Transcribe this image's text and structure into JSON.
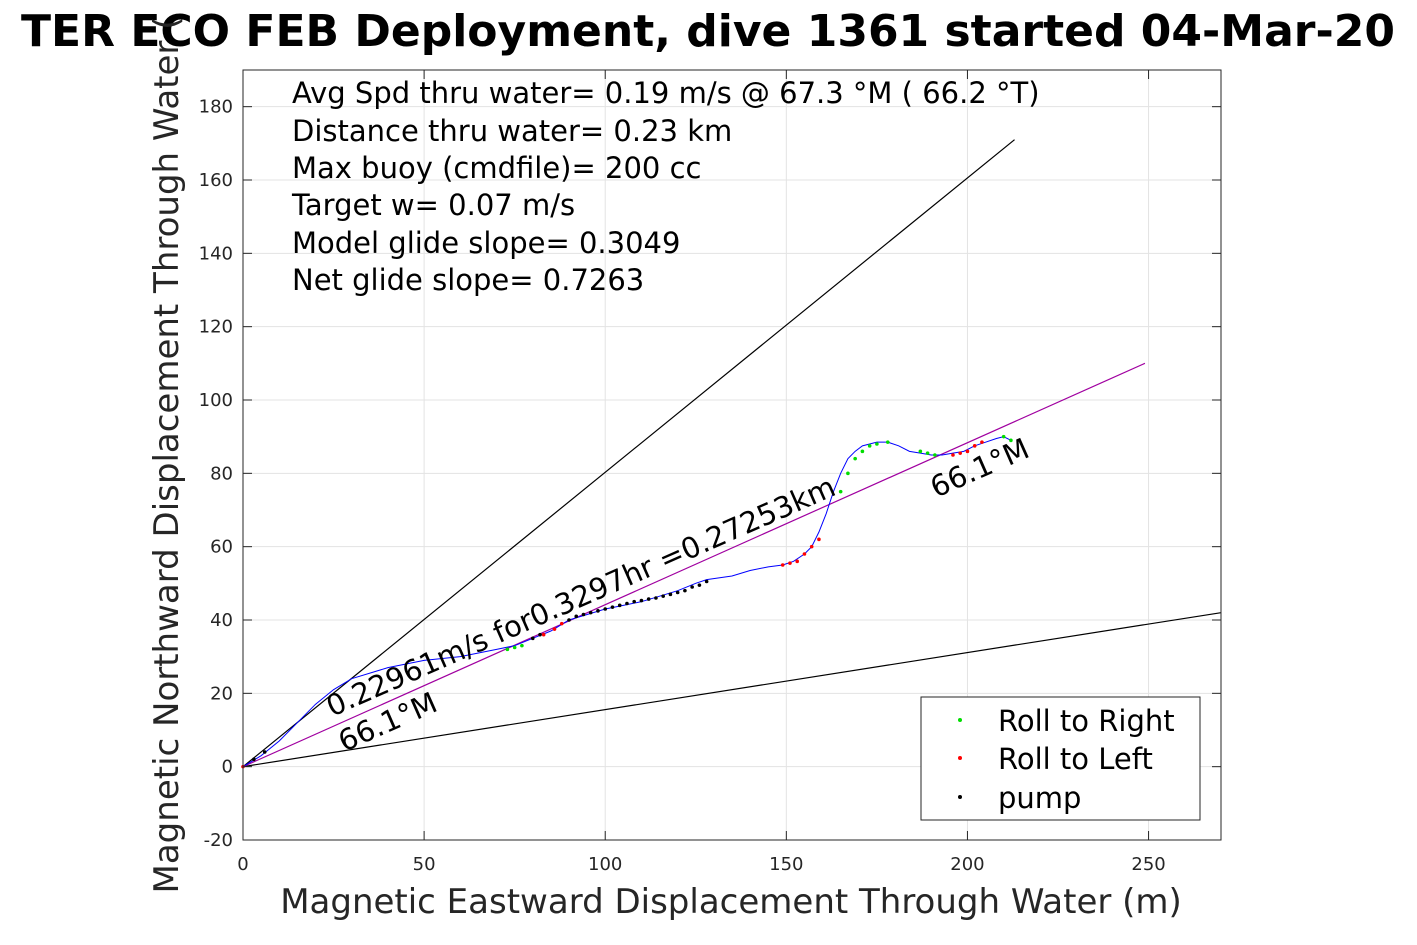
{
  "chart_data": {
    "type": "line",
    "title": "TER ECO FEB Deployment, dive 1361 started 04-Mar-20",
    "xlabel": "Magnetic Eastward Displacement Through Water (m)",
    "ylabel": "Magnetic Northward Displacement Through Water (",
    "xlim": [
      0,
      270
    ],
    "ylim": [
      -20,
      190
    ],
    "xticks": [
      0,
      50,
      100,
      150,
      200,
      250
    ],
    "yticks": [
      -20,
      0,
      20,
      40,
      60,
      80,
      100,
      120,
      140,
      160,
      180
    ],
    "grid": true,
    "info_lines": [
      "Avg Spd thru water=  0.19 m/s @  67.3 °M ( 66.2 °T)",
      "Distance thru water=  0.23 km",
      "Max buoy (cmdfile)= 200 cc",
      "Target w= 0.07 m/s",
      "Model glide slope= 0.3049",
      "Net glide slope= 0.7263"
    ],
    "annotations": {
      "speed_label": "0.22961m/s for0.3297hr =0.27253km",
      "heading_start": "66.1°M",
      "heading_end": "66.1°M"
    },
    "reference_lines": [
      {
        "name": "upper-bound",
        "color": "#000000",
        "x": [
          0,
          213
        ],
        "y": [
          0,
          171
        ]
      },
      {
        "name": "lower-bound",
        "color": "#000000",
        "x": [
          0,
          270
        ],
        "y": [
          0,
          42
        ]
      },
      {
        "name": "mean-heading",
        "color": "#a000a0",
        "x": [
          0,
          249
        ],
        "y": [
          0,
          110
        ]
      }
    ],
    "track": {
      "color": "#0000ff",
      "x": [
        0,
        5,
        10,
        15,
        20,
        25,
        30,
        40,
        50,
        55,
        60,
        65,
        70,
        75,
        80,
        85,
        90,
        95,
        100,
        105,
        110,
        115,
        120,
        125,
        128,
        135,
        140,
        145,
        149,
        152,
        155,
        157,
        159,
        161,
        163,
        165,
        167,
        169,
        171,
        173,
        175,
        178,
        181,
        184,
        187,
        190,
        193,
        196,
        199,
        202,
        205,
        208,
        210,
        212
      ],
      "y": [
        0,
        3,
        7,
        12,
        17,
        21,
        24,
        27,
        29,
        29.5,
        30,
        31,
        32,
        33,
        35,
        37,
        40,
        41.5,
        43,
        44,
        45,
        46.5,
        48,
        50,
        51,
        52,
        53.5,
        54.5,
        55,
        56,
        58,
        60,
        64,
        69,
        75,
        80,
        84,
        86,
        87.5,
        88,
        88.5,
        88.5,
        87.5,
        86,
        85.5,
        85,
        85,
        85.5,
        86,
        87.5,
        88.5,
        89.5,
        90,
        89
      ]
    },
    "series": [
      {
        "name": "Roll to Right",
        "color": "#00dd00",
        "x": [
          73,
          75,
          77,
          165,
          167,
          169,
          171,
          173,
          175,
          178,
          187,
          189,
          191,
          210,
          212
        ],
        "y": [
          32,
          32.5,
          33,
          75,
          80,
          84,
          86,
          87.5,
          88,
          88.5,
          86,
          85.5,
          85,
          90,
          89
        ]
      },
      {
        "name": "Roll to Left",
        "color": "#ff0000",
        "x": [
          0,
          83,
          86,
          88,
          149,
          151,
          153,
          155,
          157,
          159,
          196,
          198,
          200,
          202,
          204
        ],
        "y": [
          0,
          36,
          37.5,
          39,
          55,
          55.5,
          56,
          58,
          60,
          62,
          85,
          85.5,
          86,
          87.5,
          88.5
        ]
      },
      {
        "name": "pump",
        "color": "#000000",
        "x": [
          3,
          6,
          80,
          82,
          90,
          92,
          94,
          96,
          98,
          100,
          102,
          104,
          106,
          108,
          110,
          112,
          114,
          116,
          118,
          120,
          122,
          124,
          126,
          128
        ],
        "y": [
          2,
          4,
          35,
          36,
          40,
          41,
          41.5,
          42,
          42.5,
          43,
          43.5,
          44,
          44.5,
          45,
          45.3,
          45.7,
          46,
          46.5,
          47,
          47.5,
          48,
          49,
          49.5,
          50.5
        ]
      }
    ],
    "legend": {
      "placement": "bottom-right",
      "entries": [
        "Roll to Right",
        "Roll to Left",
        "pump"
      ]
    }
  }
}
